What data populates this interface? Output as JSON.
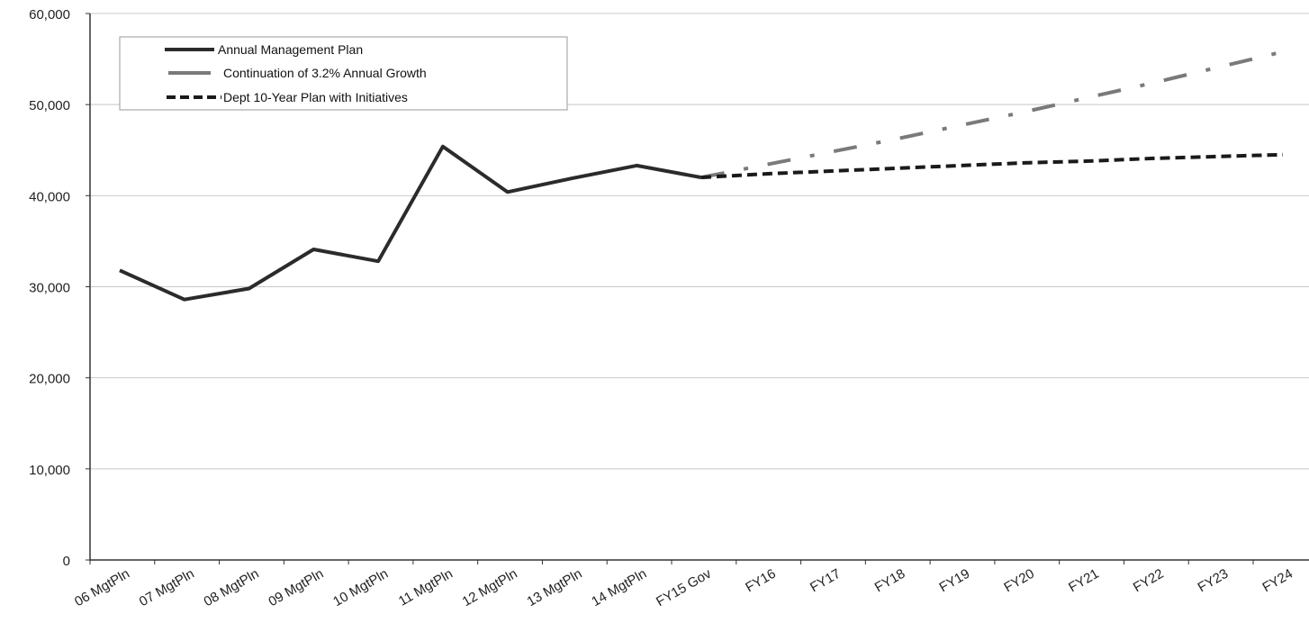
{
  "chart_data": {
    "type": "line",
    "title": "",
    "xlabel": "",
    "ylabel": "",
    "categories": [
      "06 MgtPln",
      "07 MgtPln",
      "08 MgtPln",
      "09 MgtPln",
      "10 MgtPln",
      "11 MgtPln",
      "12 MgtPln",
      "13 MgtPln",
      "14 MgtPln",
      "FY15 Gov",
      "FY16",
      "FY17",
      "FY18",
      "FY19",
      "FY20",
      "FY21",
      "FY22",
      "FY23",
      "FY24"
    ],
    "ylim": [
      0,
      60000
    ],
    "yticks": [
      0,
      10000,
      20000,
      30000,
      40000,
      50000,
      60000
    ],
    "ytick_labels": [
      "0",
      "10,000",
      "20,000",
      "30,000",
      "40,000",
      "50,000",
      "60,000"
    ],
    "grid": true,
    "legend_position": "top-left",
    "series": [
      {
        "name": "Annual Management Plan",
        "style": "solid",
        "color": "#2b2b2b",
        "values": [
          31800,
          28600,
          29800,
          34100,
          32800,
          45400,
          40400,
          41900,
          43300,
          42000,
          null,
          null,
          null,
          null,
          null,
          null,
          null,
          null,
          null
        ]
      },
      {
        "name": "Continuation of 3.2% Annual Growth",
        "style": "dash-dot",
        "color": "#7a7a7a",
        "values": [
          null,
          null,
          null,
          null,
          null,
          null,
          null,
          null,
          null,
          42000,
          43400,
          44800,
          46200,
          47700,
          49200,
          50800,
          52400,
          54100,
          55800
        ]
      },
      {
        "name": "Dept 10-Year Plan with Initiatives",
        "style": "dashed",
        "color": "#1a1a1a",
        "values": [
          null,
          null,
          null,
          null,
          null,
          null,
          null,
          null,
          null,
          42000,
          42400,
          42700,
          43000,
          43300,
          43600,
          43800,
          44100,
          44300,
          44500
        ]
      }
    ]
  }
}
